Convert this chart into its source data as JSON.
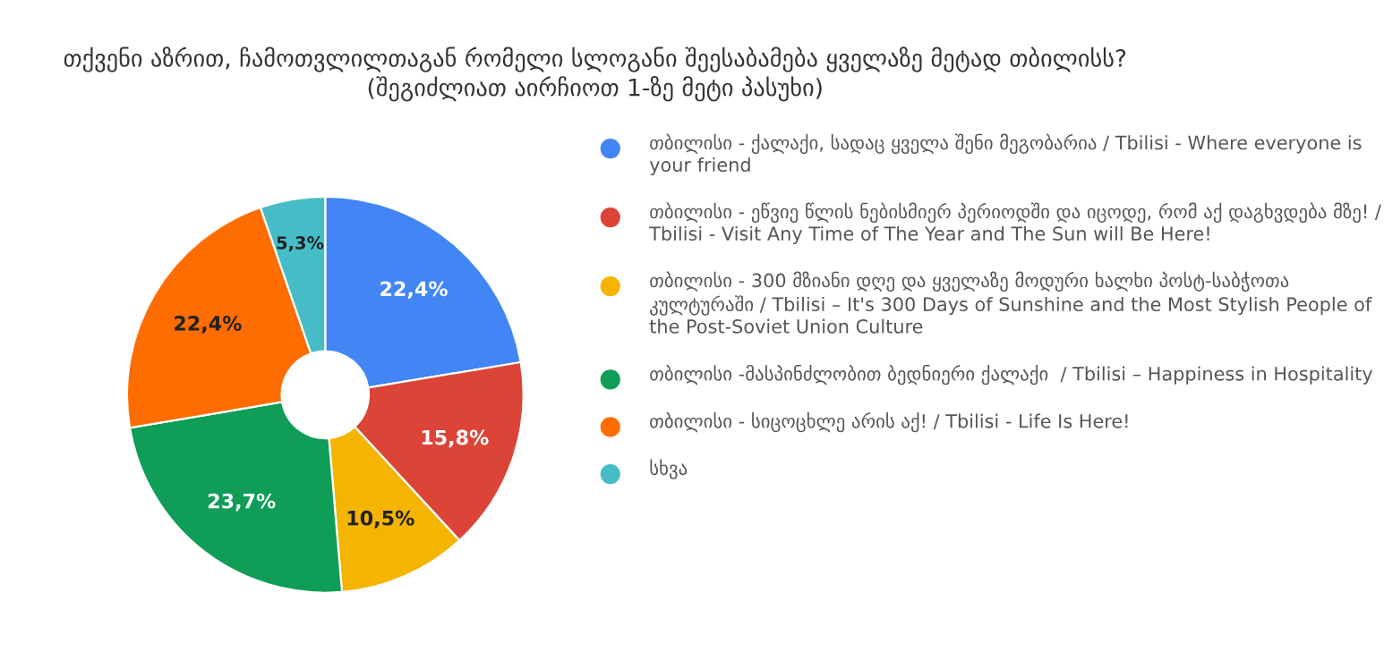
{
  "chart_data": {
    "type": "donut",
    "title": "თქვენი აზრით, ჩამოთვლილთაგან რომელი სლოგანი შეესაბამება ყველაზე მეტად თბილისს?\n(შეგიძლიათ აირჩიოთ 1-ზე მეტი პასუხი)",
    "categories": [
      "თბილისი - ქალაქი, სადაც ყველა შენი მეგობარია / Tbilisi - Where everyone is your friend",
      "თბილისი - ეწვიე წლის ნებისმიერ პერიოდში და იცოდე, რომ აქ დაგხვდება მზე! / Tbilisi - Visit Any Time of The Year and The Sun will Be Here!",
      "თბილისი - 300 მზიანი დღე და ყველაზე მოდური ხალხი პოსტ-საბჭოთა კულტურაში / Tbilisi – It's 300 Days of Sunshine and the Most Stylish People of the Post-Soviet Union Culture",
      "თბილისი -მასპინძლობით ბედნიერი ქალაქი  / Tbilisi – Happiness in Hospitality",
      "თბილისი - სიცოცხლე არის აქ! / Tbilisi - Life Is Here!",
      "სხვა"
    ],
    "values": [
      22.4,
      15.8,
      10.5,
      23.7,
      22.4,
      5.3
    ],
    "value_labels": [
      "22,4%",
      "15,8%",
      "10,5%",
      "23,7%",
      "22,4%",
      "5,3%"
    ],
    "colors": [
      "#4285f4",
      "#db4437",
      "#f4b400",
      "#0f9d58",
      "#ff6d01",
      "#46bdc6"
    ],
    "legend": "right"
  }
}
